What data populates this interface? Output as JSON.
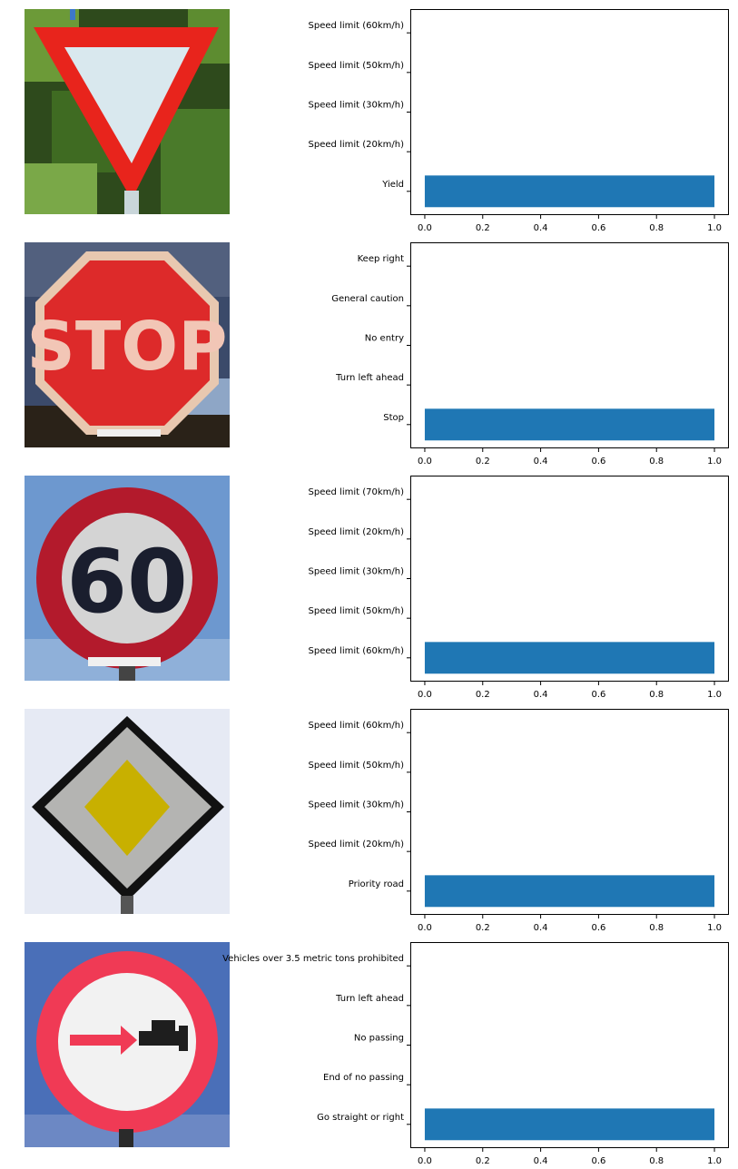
{
  "colors": {
    "bar": "#1f77b4",
    "axis": "#000000"
  },
  "chart_data": [
    {
      "type": "bar",
      "orientation": "horizontal",
      "image": "yield-sign",
      "categories": [
        "Yield",
        "Speed limit (20km/h)",
        "Speed limit (30km/h)",
        "Speed limit (50km/h)",
        "Speed limit (60km/h)"
      ],
      "values": [
        1.0,
        0.0,
        0.0,
        0.0,
        0.0
      ],
      "xlim": [
        -0.05,
        1.05
      ],
      "xticks": [
        "0.0",
        "0.2",
        "0.4",
        "0.6",
        "0.8",
        "1.0"
      ],
      "grid": false
    },
    {
      "type": "bar",
      "orientation": "horizontal",
      "image": "stop-sign",
      "categories": [
        "Stop",
        "Turn left ahead",
        "No entry",
        "General caution",
        "Keep right"
      ],
      "values": [
        1.0,
        0.0,
        0.0,
        0.0,
        0.0
      ],
      "xlim": [
        -0.05,
        1.05
      ],
      "xticks": [
        "0.0",
        "0.2",
        "0.4",
        "0.6",
        "0.8",
        "1.0"
      ],
      "grid": false
    },
    {
      "type": "bar",
      "orientation": "horizontal",
      "image": "speed-limit-60-sign",
      "categories": [
        "Speed limit (60km/h)",
        "Speed limit (50km/h)",
        "Speed limit (30km/h)",
        "Speed limit (20km/h)",
        "Speed limit (70km/h)"
      ],
      "values": [
        1.0,
        0.0,
        0.0,
        0.0,
        0.0
      ],
      "xlim": [
        -0.05,
        1.05
      ],
      "xticks": [
        "0.0",
        "0.2",
        "0.4",
        "0.6",
        "0.8",
        "1.0"
      ],
      "grid": false
    },
    {
      "type": "bar",
      "orientation": "horizontal",
      "image": "priority-road-sign",
      "categories": [
        "Priority road",
        "Speed limit (20km/h)",
        "Speed limit (30km/h)",
        "Speed limit (50km/h)",
        "Speed limit (60km/h)"
      ],
      "values": [
        1.0,
        0.0,
        0.0,
        0.0,
        0.0
      ],
      "xlim": [
        -0.05,
        1.05
      ],
      "xticks": [
        "0.0",
        "0.2",
        "0.4",
        "0.6",
        "0.8",
        "1.0"
      ],
      "grid": false
    },
    {
      "type": "bar",
      "orientation": "horizontal",
      "image": "go-straight-or-right-sign",
      "categories": [
        "Go straight or right",
        "End of no passing",
        "No passing",
        "Turn left ahead",
        "Vehicles over 3.5 metric tons prohibited"
      ],
      "values": [
        1.0,
        0.0,
        0.0,
        0.0,
        0.0
      ],
      "xlim": [
        -0.05,
        1.05
      ],
      "xticks": [
        "0.0",
        "0.2",
        "0.4",
        "0.6",
        "0.8",
        "1.0"
      ],
      "grid": false
    }
  ]
}
